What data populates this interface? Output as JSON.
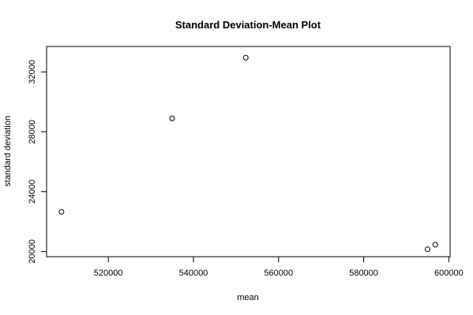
{
  "chart_data": {
    "type": "scatter",
    "title": "Standard Deviation-Mean Plot",
    "xlabel": "mean",
    "ylabel": "standard deviation",
    "xlim": [
      505500,
      600300
    ],
    "ylim": [
      19650,
      33700
    ],
    "xticks": [
      520000,
      540000,
      560000,
      580000,
      600000
    ],
    "xtick_labels": [
      "520000",
      "540000",
      "560000",
      "580000",
      "600000"
    ],
    "yticks": [
      20000,
      24000,
      28000,
      32000
    ],
    "ytick_labels": [
      "20000",
      "24000",
      "28000",
      "32000"
    ],
    "grid": false,
    "points": [
      {
        "x": 509000,
        "y": 22650
      },
      {
        "x": 535000,
        "y": 28900
      },
      {
        "x": 552300,
        "y": 32950
      },
      {
        "x": 595000,
        "y": 20150
      },
      {
        "x": 596800,
        "y": 20450
      }
    ]
  }
}
